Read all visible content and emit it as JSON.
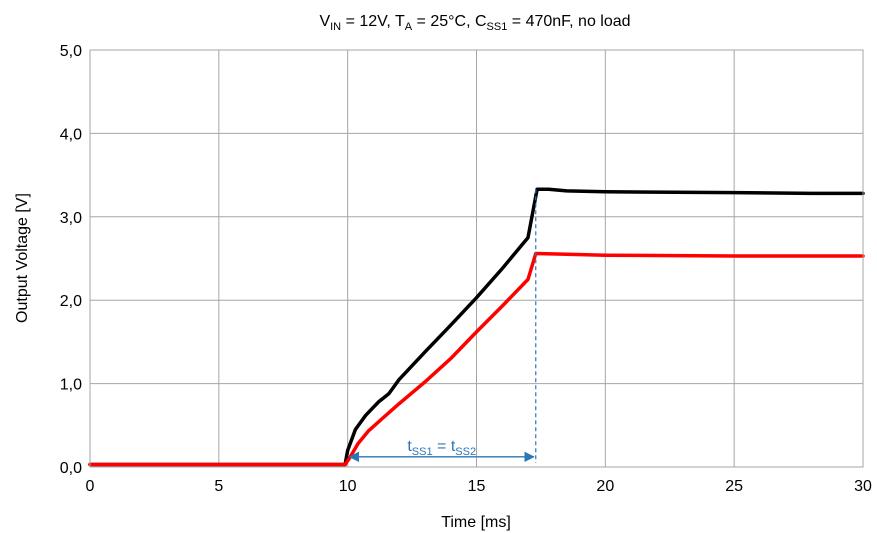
{
  "chart_data": {
    "type": "line",
    "title": {
      "vin_main": "V",
      "vin_sub": "IN",
      "vin_rest": " = 12V, ",
      "ta_main": "T",
      "ta_sub": "A",
      "ta_rest": " = 25°C, ",
      "css_main": "C",
      "css_sub": "SS1",
      "css_rest": " = 470nF, no load"
    },
    "xlabel": "Time [ms]",
    "ylabel": "Output Voltage   [V]",
    "xlim": [
      0,
      30
    ],
    "ylim": [
      0,
      5
    ],
    "x_ticks": [
      "0",
      "5",
      "10",
      "15",
      "20",
      "25",
      "30"
    ],
    "y_ticks": [
      "0,0",
      "1,0",
      "2,0",
      "3,0",
      "4,0",
      "5,0"
    ],
    "grid": true,
    "series": [
      {
        "color": "#000000",
        "points": [
          [
            0,
            0.03
          ],
          [
            9.9,
            0.03
          ],
          [
            10.0,
            0.2
          ],
          [
            10.3,
            0.45
          ],
          [
            10.7,
            0.62
          ],
          [
            11.2,
            0.78
          ],
          [
            11.6,
            0.88
          ],
          [
            12.0,
            1.05
          ],
          [
            13.0,
            1.38
          ],
          [
            14.0,
            1.7
          ],
          [
            15.0,
            2.03
          ],
          [
            16.0,
            2.38
          ],
          [
            17.0,
            2.75
          ],
          [
            17.35,
            3.33
          ],
          [
            17.8,
            3.33
          ],
          [
            18.5,
            3.31
          ],
          [
            20,
            3.3
          ],
          [
            25,
            3.29
          ],
          [
            28,
            3.28
          ],
          [
            30,
            3.28
          ]
        ]
      },
      {
        "color": "#ff0000",
        "points": [
          [
            0,
            0.03
          ],
          [
            9.9,
            0.03
          ],
          [
            10.1,
            0.12
          ],
          [
            10.4,
            0.28
          ],
          [
            10.8,
            0.43
          ],
          [
            11.3,
            0.57
          ],
          [
            12.0,
            0.76
          ],
          [
            13.0,
            1.02
          ],
          [
            14.0,
            1.3
          ],
          [
            15.0,
            1.62
          ],
          [
            16.0,
            1.93
          ],
          [
            17.0,
            2.25
          ],
          [
            17.3,
            2.56
          ],
          [
            18.5,
            2.55
          ],
          [
            20,
            2.54
          ],
          [
            25,
            2.53
          ],
          [
            30,
            2.53
          ]
        ]
      }
    ],
    "annotation": {
      "color": "#2e75b6",
      "x_start": 10.0,
      "x_end": 17.3,
      "y": 0.05,
      "dashed_to_y": 3.33,
      "t1_main": "t",
      "t1_sub": "SS1",
      "eq": " = ",
      "t2_main": "t",
      "t2_sub": "SS2"
    }
  }
}
